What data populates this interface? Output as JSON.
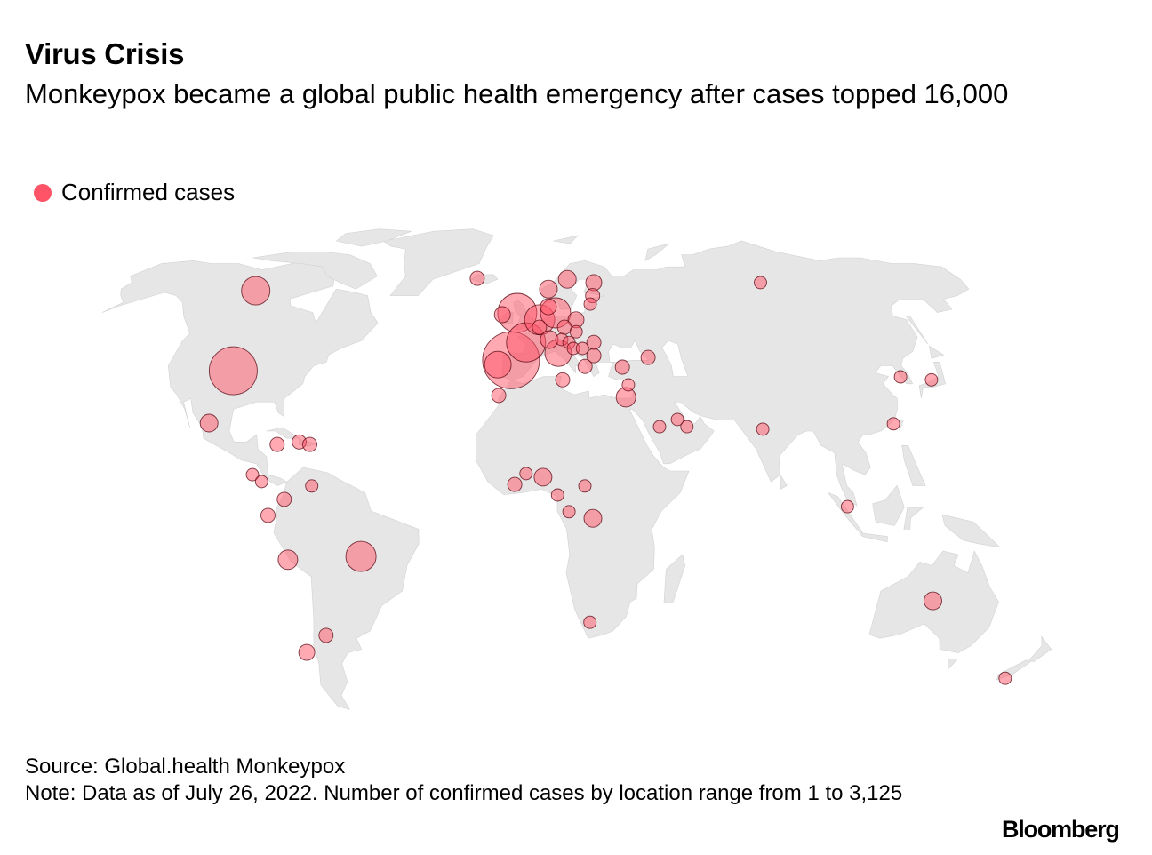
{
  "header": {
    "title": "Virus Crisis",
    "subtitle": "Monkeypox became a global public health emergency after cases topped 16,000"
  },
  "legend": {
    "label": "Confirmed cases",
    "color": "#ff5468"
  },
  "footer": {
    "source": "Source: Global.health Monkeypox",
    "note": "Note: Data as of July 26, 2022. Number of confirmed cases by location range from 1 to 3,125"
  },
  "logo": "Bloomberg",
  "colors": {
    "land": "#e6e6e6",
    "bubble_fill": "#ff5468",
    "bubble_stroke": "#5a0a14"
  },
  "chart_data": {
    "type": "bubble-map",
    "projection": "Robinson",
    "size_encoding": "confirmed cases",
    "value_range": [
      1,
      3125
    ],
    "points": [
      {
        "lat": 61.5,
        "lon": -110,
        "cases": 434
      },
      {
        "lat": 38.6,
        "lon": -101,
        "cases": 2020
      },
      {
        "lat": 24.2,
        "lon": -104,
        "cases": 59
      },
      {
        "lat": 18.3,
        "lon": -81,
        "cases": 11
      },
      {
        "lat": 19.0,
        "lon": -74,
        "cases": 11
      },
      {
        "lat": 18.3,
        "lon": -70.5,
        "cases": 11
      },
      {
        "lat": 10.0,
        "lon": -88,
        "cases": 1
      },
      {
        "lat": 8.1,
        "lon": -85,
        "cases": 1
      },
      {
        "lat": 6.9,
        "lon": -69,
        "cases": 1
      },
      {
        "lat": 3.2,
        "lon": -77.6,
        "cases": 11
      },
      {
        "lat": -1.2,
        "lon": -82.7,
        "cases": 11
      },
      {
        "lat": -13.4,
        "lon": -77,
        "cases": 97
      },
      {
        "lat": -12.5,
        "lon": -53.6,
        "cases": 530
      },
      {
        "lat": -38.9,
        "lon": -76,
        "cases": 30
      },
      {
        "lat": -34.2,
        "lon": -68,
        "cases": 11
      },
      {
        "lat": 65.3,
        "lon": -21.6,
        "cases": 11
      },
      {
        "lat": 62.0,
        "lon": 7.9,
        "cases": 59
      },
      {
        "lat": 65.0,
        "lon": 16,
        "cases": 59
      },
      {
        "lat": 64.0,
        "lon": 26.8,
        "cases": 30
      },
      {
        "lat": 60.0,
        "lon": 25.3,
        "cases": 11
      },
      {
        "lat": 57.5,
        "lon": 23.8,
        "cases": 1
      },
      {
        "lat": 54.4,
        "lon": -10,
        "cases": 30
      },
      {
        "lat": 54.9,
        "lon": -4.4,
        "cases": 1155
      },
      {
        "lat": 56.7,
        "lon": 7.5,
        "cases": 30
      },
      {
        "lat": 52.9,
        "lon": 4,
        "cases": 530
      },
      {
        "lat": 54.9,
        "lon": 10.1,
        "cases": 530
      },
      {
        "lat": 50.8,
        "lon": 3.9,
        "cases": 11
      },
      {
        "lat": 46.5,
        "lon": -1,
        "cases": 1155
      },
      {
        "lat": 41.5,
        "lon": -6.2,
        "cases": 3125
      },
      {
        "lat": 40.3,
        "lon": -10.7,
        "cases": 347
      },
      {
        "lat": 47.3,
        "lon": 7.3,
        "cases": 59
      },
      {
        "lat": 43.5,
        "lon": 10.3,
        "cases": 347
      },
      {
        "lat": 50.8,
        "lon": 13.1,
        "cases": 11
      },
      {
        "lat": 52.9,
        "lon": 17.6,
        "cases": 30
      },
      {
        "lat": 49.5,
        "lon": 17.2,
        "cases": 1
      },
      {
        "lat": 47.3,
        "lon": 11.8,
        "cases": 1
      },
      {
        "lat": 46.5,
        "lon": 14.3,
        "cases": 1
      },
      {
        "lat": 44.8,
        "lon": 15.7,
        "cases": 1
      },
      {
        "lat": 44.8,
        "lon": 18.9,
        "cases": 1
      },
      {
        "lat": 46.5,
        "lon": 23.2,
        "cases": 11
      },
      {
        "lat": 42.8,
        "lon": 22.7,
        "cases": 11
      },
      {
        "lat": 39.8,
        "lon": 19.3,
        "cases": 11
      },
      {
        "lat": 36.1,
        "lon": 11.4,
        "cases": 11
      },
      {
        "lat": 31.8,
        "lon": -10,
        "cases": 11
      },
      {
        "lat": 39.6,
        "lon": 32.1,
        "cases": 11
      },
      {
        "lat": 42.3,
        "lon": 41.5,
        "cases": 11
      },
      {
        "lat": 34.7,
        "lon": 33.4,
        "cases": 1
      },
      {
        "lat": 31.3,
        "lon": 32.2,
        "cases": 97
      },
      {
        "lat": 64.0,
        "lon": 95.6,
        "cases": 1
      },
      {
        "lat": 36.9,
        "lon": 126,
        "cases": 1
      },
      {
        "lat": 36.1,
        "lon": 136,
        "cases": 1
      },
      {
        "lat": 24.0,
        "lon": 118.5,
        "cases": 1
      },
      {
        "lat": 22.5,
        "lon": 75.8,
        "cases": 1
      },
      {
        "lat": 23.2,
        "lon": 42.4,
        "cases": 1
      },
      {
        "lat": 25.2,
        "lon": 48.4,
        "cases": 1
      },
      {
        "lat": 23.2,
        "lon": 51.3,
        "cases": 1
      },
      {
        "lat": 1.2,
        "lon": 101,
        "cases": 1
      },
      {
        "lat": -24.7,
        "lon": 131.5,
        "cases": 59
      },
      {
        "lat": -46.1,
        "lon": 169.6,
        "cases": 1
      },
      {
        "lat": 7.3,
        "lon": -4.5,
        "cases": 11
      },
      {
        "lat": 10.3,
        "lon": -0.9,
        "cases": 1
      },
      {
        "lat": 9.3,
        "lon": 4.5,
        "cases": 59
      },
      {
        "lat": 4.4,
        "lon": 9.1,
        "cases": 1
      },
      {
        "lat": 6.9,
        "lon": 17.8,
        "cases": 1
      },
      {
        "lat": -0.2,
        "lon": 12.7,
        "cases": 1
      },
      {
        "lat": -2.0,
        "lon": 20.3,
        "cases": 59
      },
      {
        "lat": -30.6,
        "lon": 20.2,
        "cases": 1
      }
    ]
  }
}
